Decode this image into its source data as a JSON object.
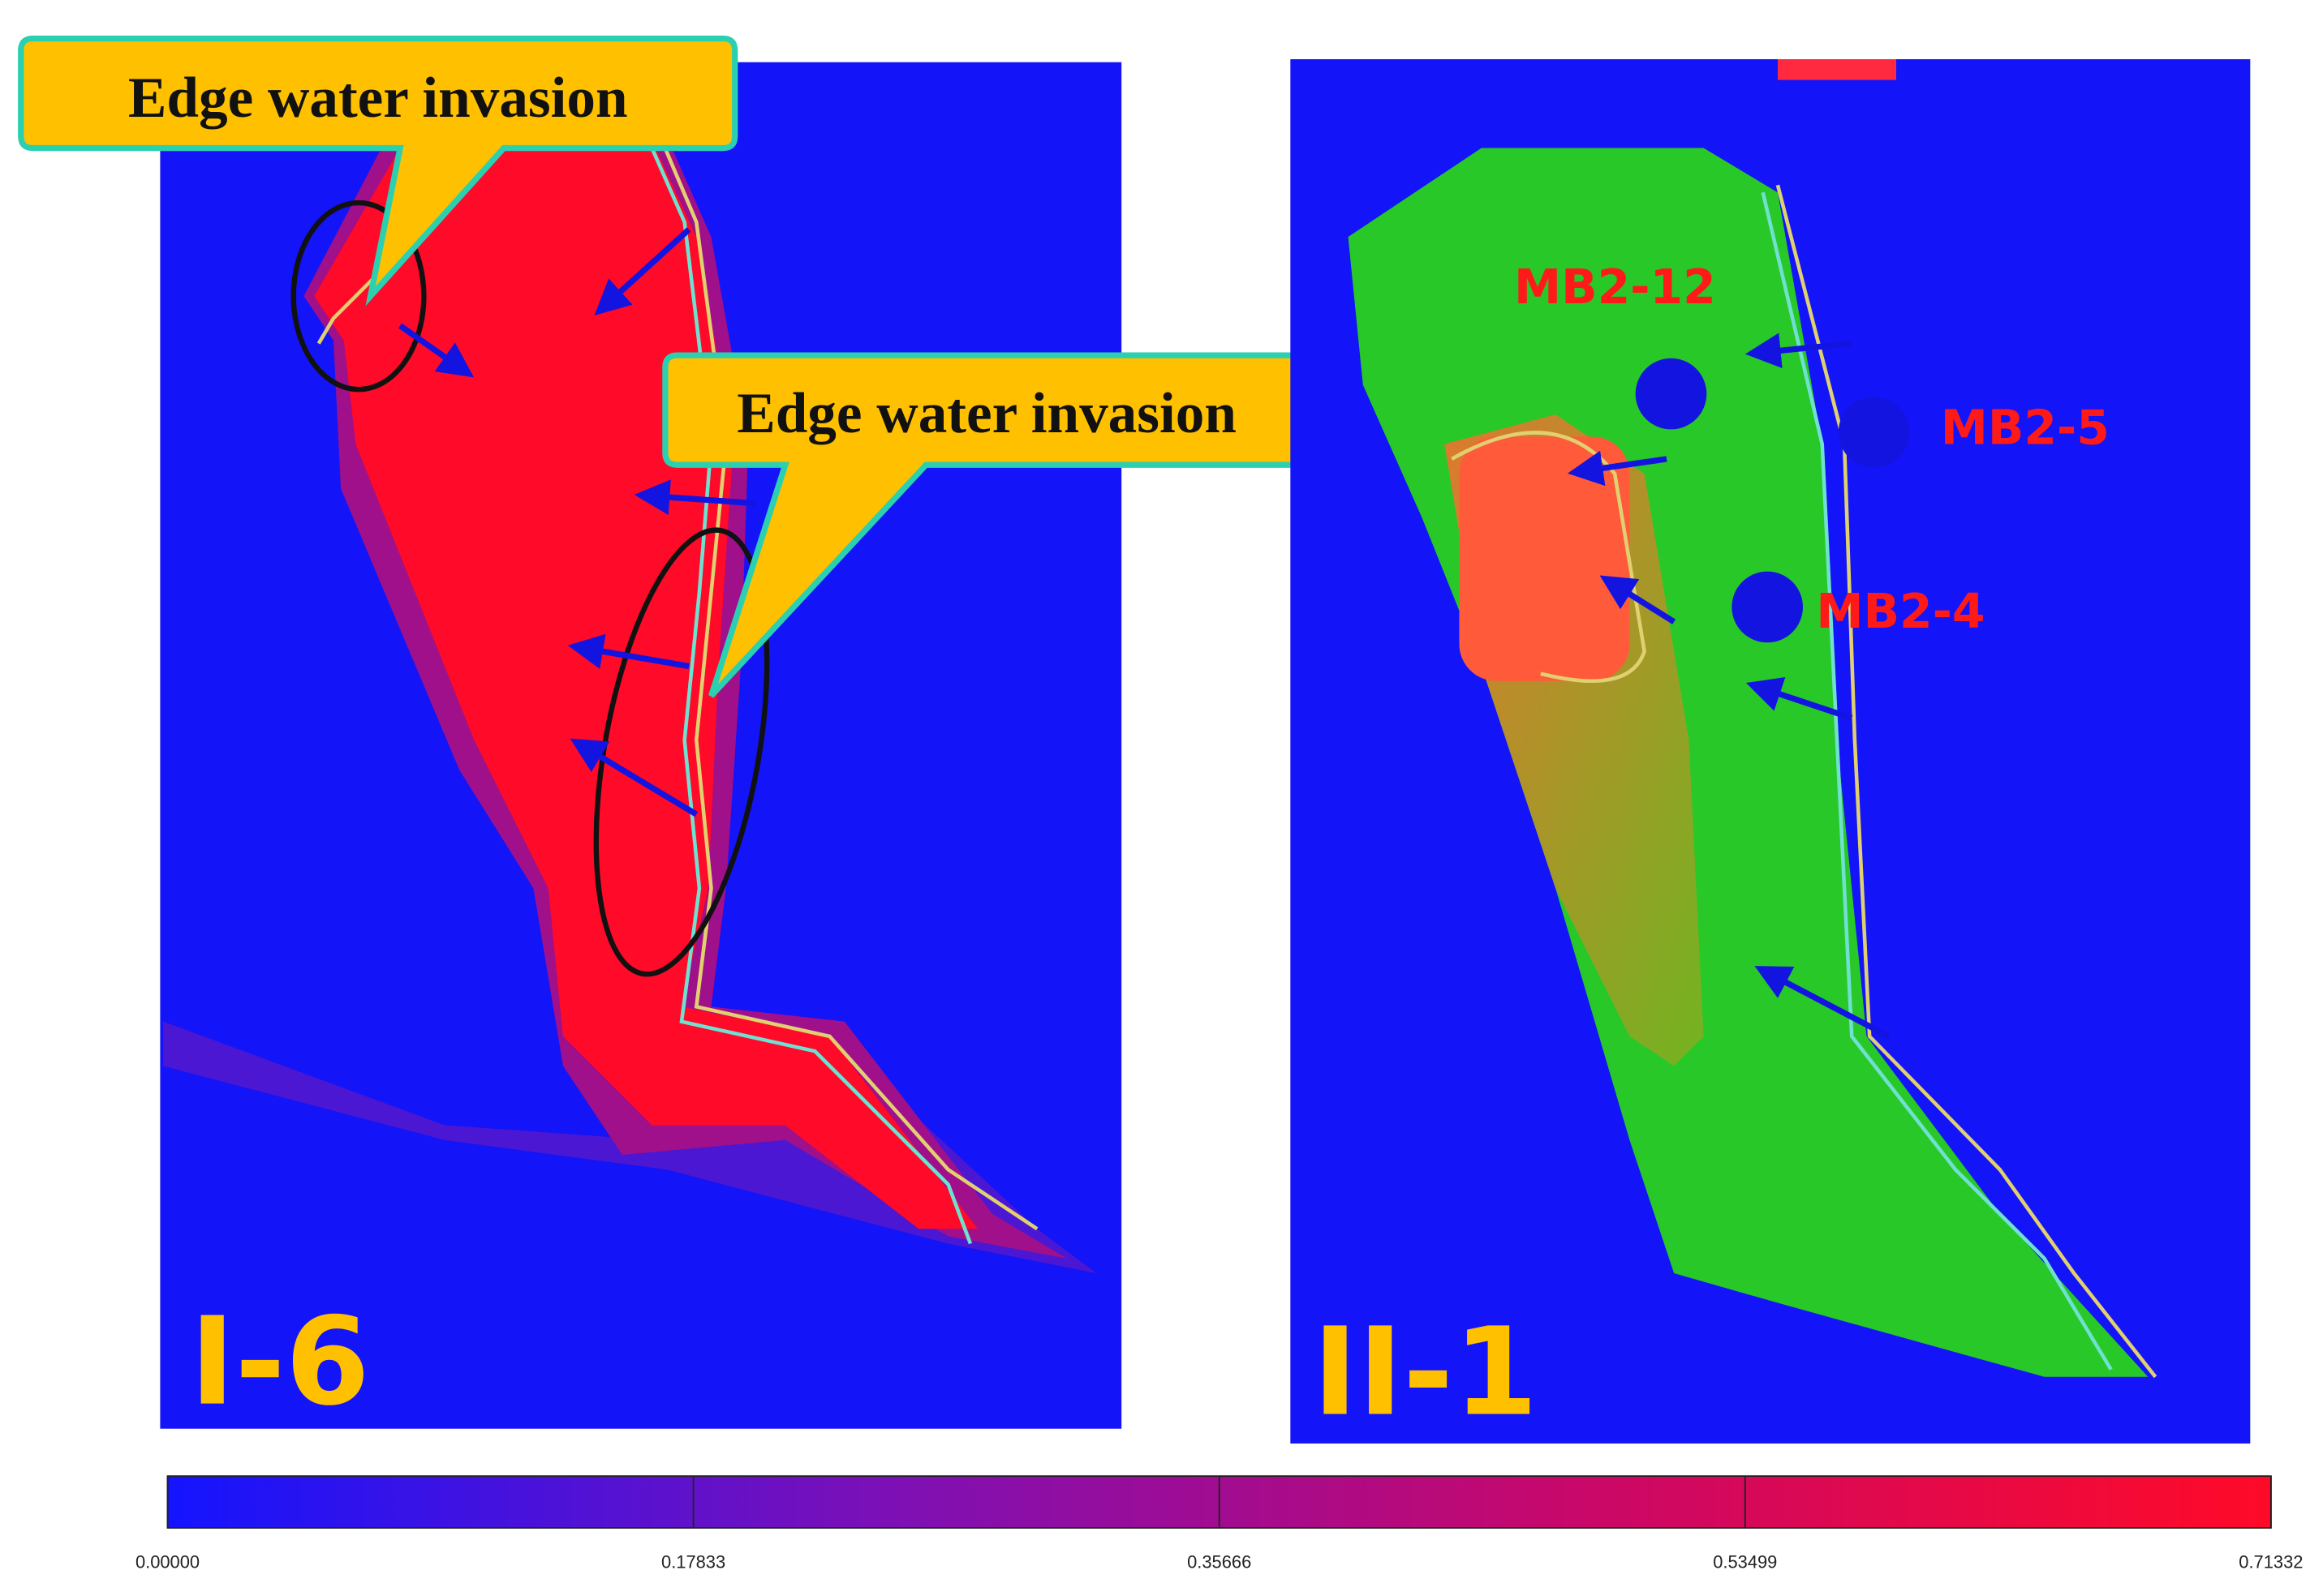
{
  "panels": [
    {
      "label": "I-6",
      "callouts": [
        "Edge water invasion",
        "Edge water invasion"
      ]
    },
    {
      "label": "II-1",
      "wells": [
        "MB2-12",
        "MB2-5",
        "MB2-4"
      ]
    }
  ],
  "colorbar": {
    "lim": [
      0,
      0.71332
    ],
    "ticks": [
      {
        "value": 0,
        "label": "0.00000"
      },
      {
        "value": 0.17833,
        "label": "0.17833"
      },
      {
        "value": 0.35666,
        "label": "0.35666"
      },
      {
        "value": 0.53499,
        "label": "0.53499"
      },
      {
        "value": 0.71332,
        "label": "0.71332"
      }
    ],
    "colors": [
      "#1414ff",
      "#7a10b8",
      "#c8086a",
      "#ff0a28"
    ]
  }
}
